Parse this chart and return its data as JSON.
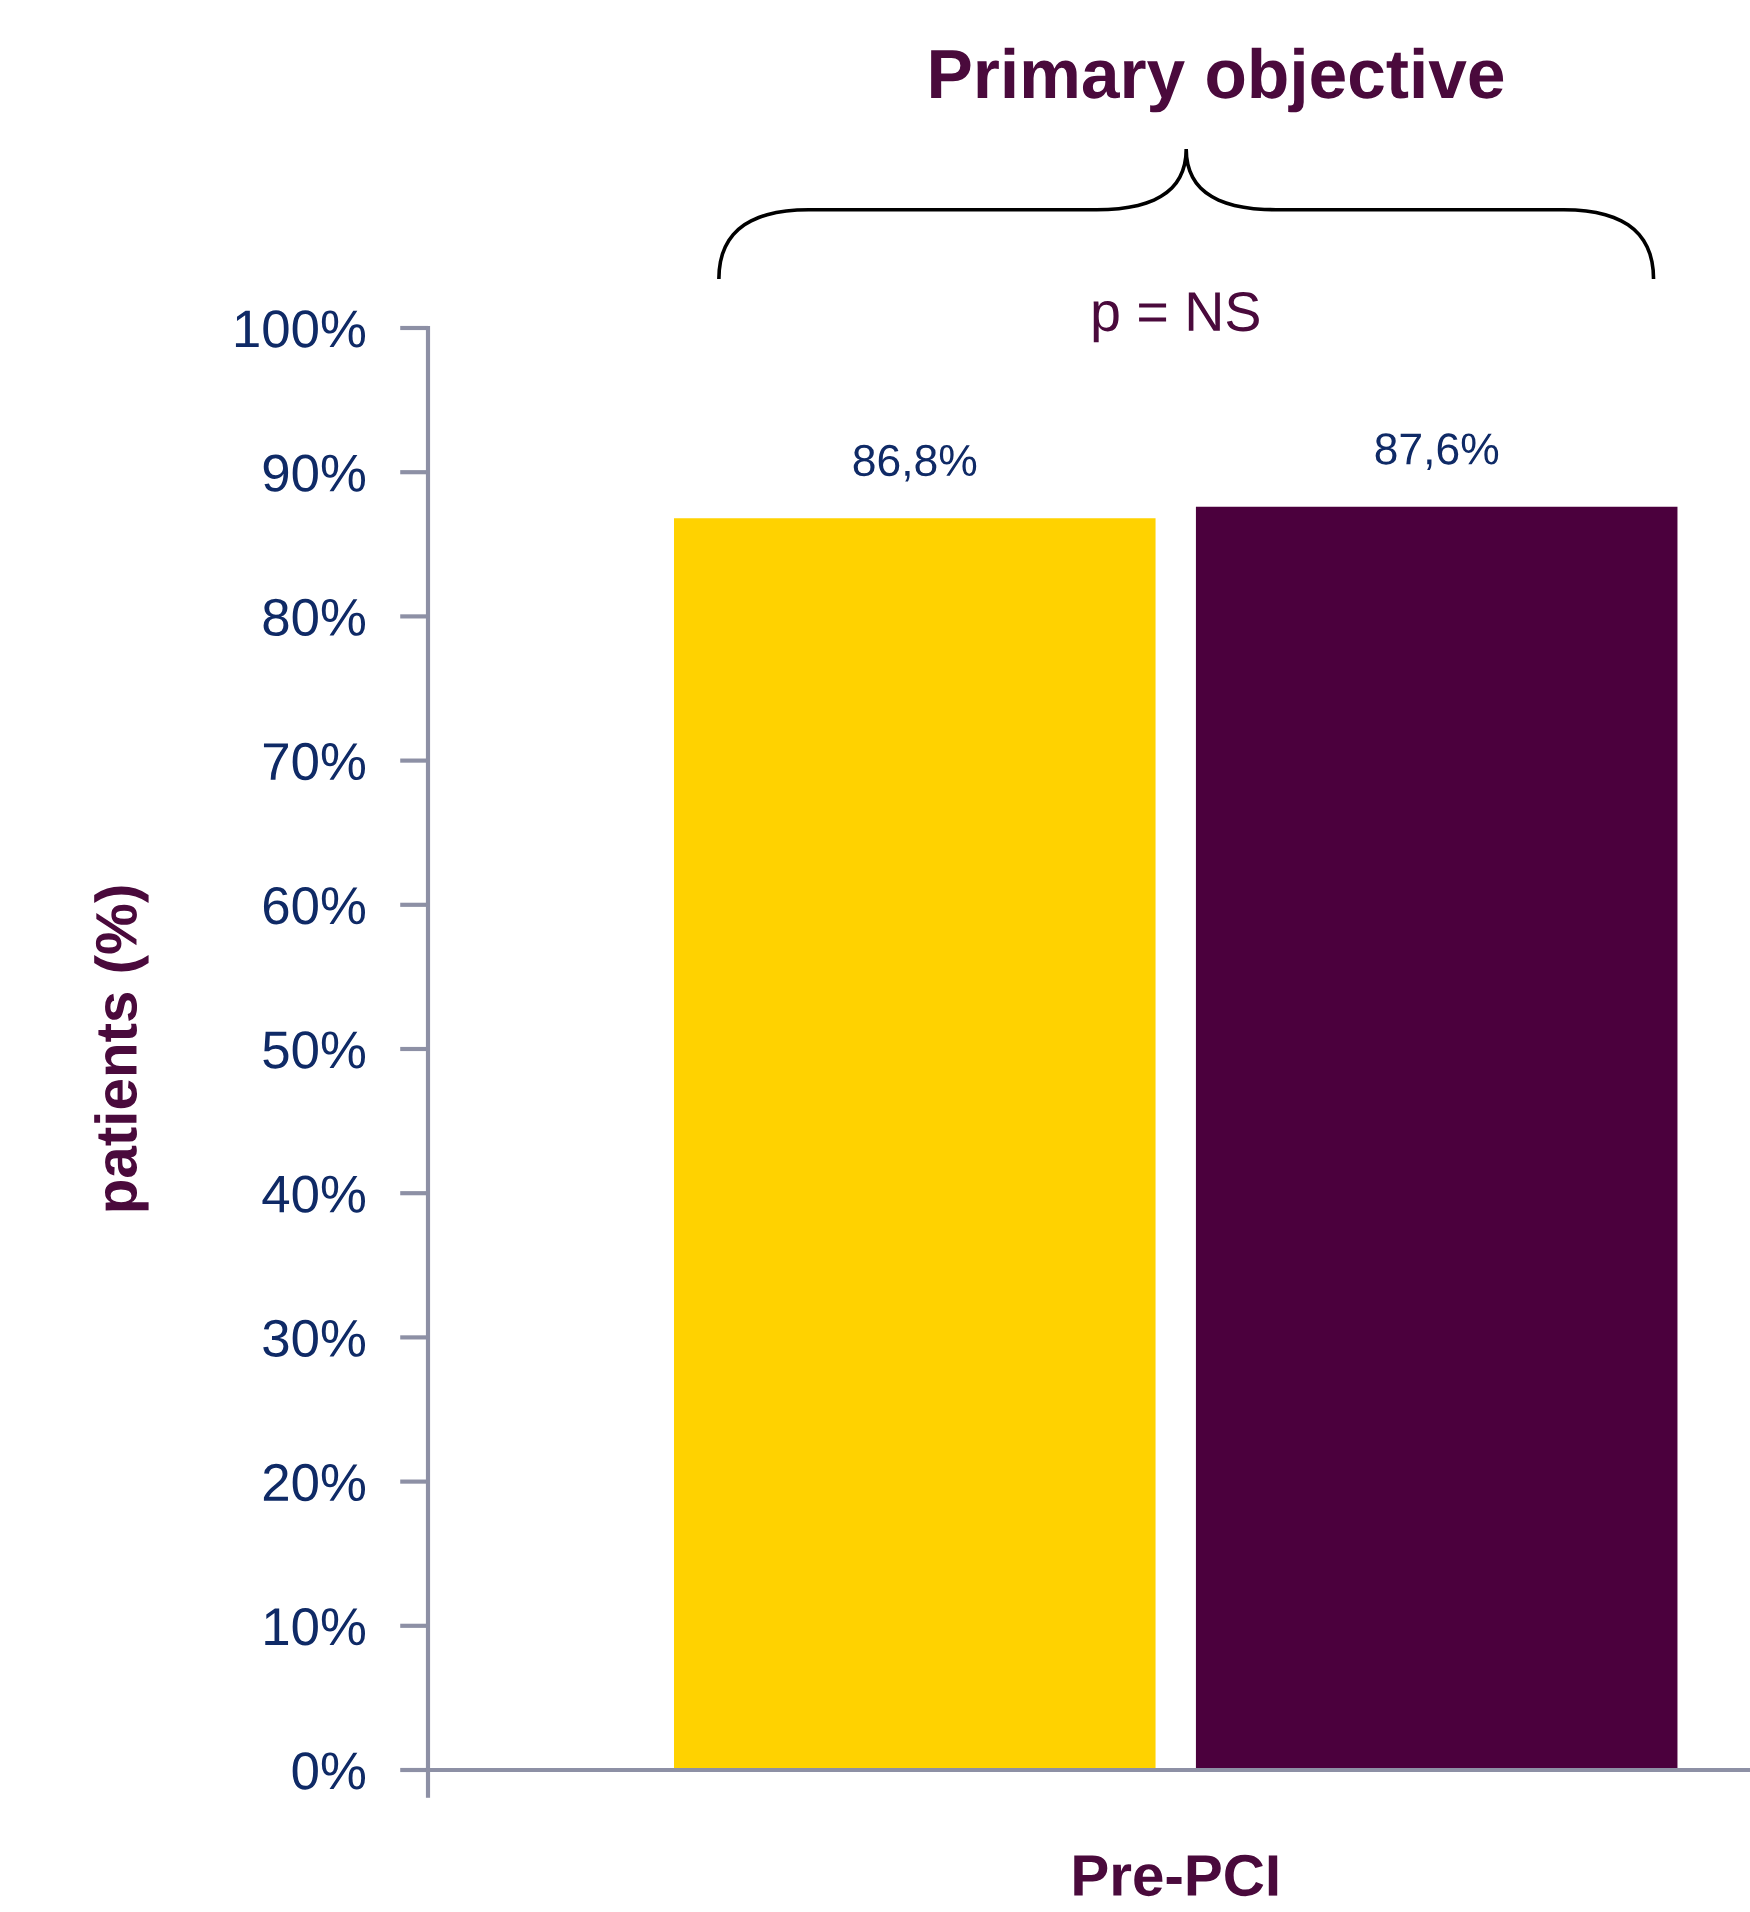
{
  "chart_data": {
    "type": "bar",
    "title": "Primary objective",
    "ylabel": "patients (%)",
    "categories": [
      "Pre-PCI"
    ],
    "series": [
      {
        "color": "#ffd200",
        "values": [
          86.8
        ],
        "value_labels": [
          "86,8%"
        ]
      },
      {
        "color": "#4b003d",
        "values": [
          87.6
        ],
        "value_labels": [
          "87,6%"
        ]
      }
    ],
    "ylim": [
      0,
      100
    ],
    "yticks": [
      {
        "value": 0,
        "label": "0%"
      },
      {
        "value": 10,
        "label": "10%"
      },
      {
        "value": 20,
        "label": "20%"
      },
      {
        "value": 30,
        "label": "30%"
      },
      {
        "value": 40,
        "label": "40%"
      },
      {
        "value": 50,
        "label": "50%"
      },
      {
        "value": 60,
        "label": "60%"
      },
      {
        "value": 70,
        "label": "70%"
      },
      {
        "value": 80,
        "label": "80%"
      },
      {
        "value": 90,
        "label": "90%"
      },
      {
        "value": 100,
        "label": "100%"
      }
    ],
    "annotations": [
      "p = NS"
    ]
  }
}
